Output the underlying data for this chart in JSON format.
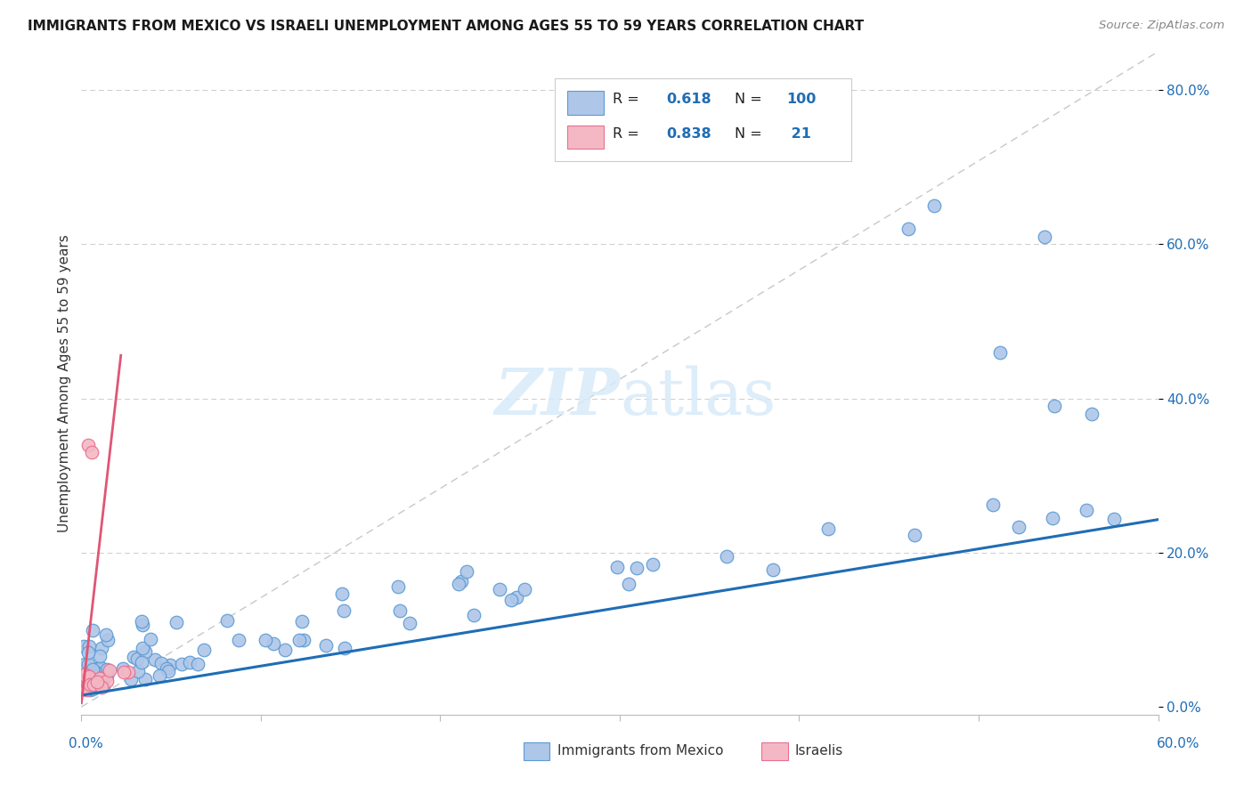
{
  "title": "IMMIGRANTS FROM MEXICO VS ISRAELI UNEMPLOYMENT AMONG AGES 55 TO 59 YEARS CORRELATION CHART",
  "source": "Source: ZipAtlas.com",
  "xlabel_bottom_left": "0.0%",
  "xlabel_bottom_right": "60.0%",
  "ylabel": "Unemployment Among Ages 55 to 59 years",
  "ytick_labels": [
    "0.0%",
    "20.0%",
    "40.0%",
    "60.0%",
    "80.0%"
  ],
  "ytick_values": [
    0.0,
    0.2,
    0.4,
    0.6,
    0.8
  ],
  "xlim": [
    0.0,
    0.6
  ],
  "ylim": [
    -0.01,
    0.85
  ],
  "blue_color": "#aec6e8",
  "blue_edge_color": "#5b9bd5",
  "pink_color": "#f4b8c4",
  "pink_edge_color": "#e87090",
  "blue_line_color": "#1f6db5",
  "pink_line_color": "#e05575",
  "R_blue": 0.618,
  "N_blue": 100,
  "R_pink": 0.838,
  "N_pink": 21,
  "legend_label_blue": "Immigrants from Mexico",
  "legend_label_pink": "Israelis",
  "background_color": "#ffffff",
  "grid_color": "#cccccc",
  "diag_color": "#c8c8c8",
  "watermark_color": "#d8eaf8"
}
